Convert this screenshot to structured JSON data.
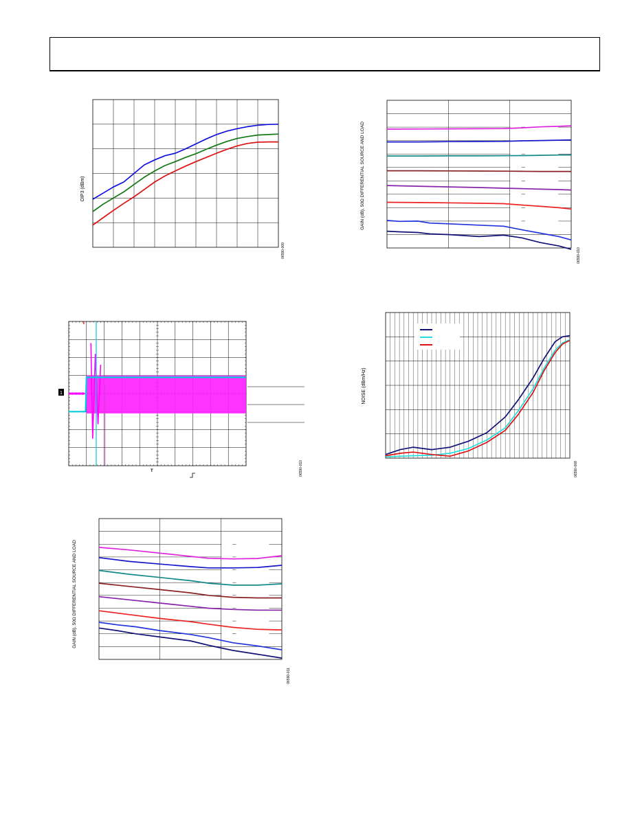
{
  "page": {
    "header_text": ""
  },
  "chart_data": [
    {
      "id": "oip3",
      "type": "line",
      "ylabel": "OIP3 (dBm)",
      "figure_code": "06590-009",
      "grid": true,
      "xlim": [
        0,
        9
      ],
      "ylim": [
        0,
        6
      ],
      "series": [
        {
          "color": "#1010dd",
          "x": [
            0,
            0.5,
            1,
            1.5,
            2,
            2.5,
            3,
            3.5,
            4,
            4.5,
            5,
            5.5,
            6,
            6.5,
            7,
            7.5,
            8,
            8.5,
            9
          ],
          "y": [
            1.95,
            2.2,
            2.45,
            2.65,
            3.0,
            3.35,
            3.55,
            3.72,
            3.82,
            4.0,
            4.2,
            4.4,
            4.58,
            4.72,
            4.82,
            4.9,
            4.96,
            4.99,
            5.0
          ]
        },
        {
          "color": "#117711",
          "x": [
            0,
            0.5,
            1,
            1.5,
            2,
            2.5,
            3,
            3.5,
            4,
            4.5,
            5,
            5.5,
            6,
            6.5,
            7,
            7.5,
            8,
            8.5,
            9
          ],
          "y": [
            1.45,
            1.75,
            2.0,
            2.25,
            2.55,
            2.85,
            3.1,
            3.32,
            3.48,
            3.65,
            3.8,
            3.98,
            4.15,
            4.3,
            4.42,
            4.5,
            4.56,
            4.58,
            4.6
          ]
        },
        {
          "color": "#dd1111",
          "x": [
            0,
            0.5,
            1,
            1.5,
            2,
            2.5,
            3,
            3.5,
            4,
            4.5,
            5,
            5.5,
            6,
            6.5,
            7,
            7.5,
            8,
            8.5,
            9
          ],
          "y": [
            0.9,
            1.2,
            1.5,
            1.78,
            2.05,
            2.35,
            2.65,
            2.9,
            3.1,
            3.3,
            3.48,
            3.65,
            3.82,
            3.98,
            4.12,
            4.22,
            4.27,
            4.28,
            4.28
          ]
        }
      ]
    },
    {
      "id": "gain_a",
      "type": "line",
      "ylabel": "GAIN (dB), 50Ω DIFFERENTIAL SOURCE AND LOAD",
      "figure_code": "06590-010",
      "grid": true,
      "xlim": [
        0,
        3
      ],
      "ylim": [
        0,
        11
      ],
      "series": [
        {
          "color": "#dd22dd",
          "x": [
            0,
            0.5,
            1,
            1.5,
            1.9,
            2.2,
            2.5,
            2.8,
            3
          ],
          "y": [
            8.85,
            8.86,
            8.87,
            8.88,
            8.89,
            8.95,
            9.02,
            9.06,
            9.1
          ]
        },
        {
          "color": "#1515cc",
          "x": [
            0,
            0.5,
            1,
            1.5,
            1.9,
            2.2,
            2.5,
            2.8,
            3
          ],
          "y": [
            7.9,
            7.9,
            7.92,
            7.93,
            7.94,
            7.98,
            8.0,
            8.03,
            8.05
          ]
        },
        {
          "color": "#118888",
          "x": [
            0,
            0.5,
            1,
            1.5,
            1.9,
            2.2,
            2.5,
            2.8,
            3
          ],
          "y": [
            6.85,
            6.85,
            6.86,
            6.86,
            6.87,
            6.88,
            6.9,
            6.92,
            6.93
          ]
        },
        {
          "color": "#882222",
          "x": [
            0,
            0.5,
            1,
            1.5,
            1.9,
            2.2,
            2.5,
            2.8,
            3
          ],
          "y": [
            5.75,
            5.75,
            5.74,
            5.73,
            5.72,
            5.71,
            5.7,
            5.7,
            5.7
          ]
        },
        {
          "color": "#8822aa",
          "x": [
            0,
            0.5,
            1,
            1.5,
            1.9,
            2.2,
            2.5,
            2.8,
            3
          ],
          "y": [
            4.65,
            4.6,
            4.55,
            4.5,
            4.45,
            4.42,
            4.38,
            4.35,
            4.32
          ]
        },
        {
          "color": "#ee2222",
          "x": [
            0,
            0.5,
            1,
            1.5,
            1.9,
            2.2,
            2.5,
            2.8,
            3
          ],
          "y": [
            3.4,
            3.38,
            3.36,
            3.33,
            3.3,
            3.2,
            3.1,
            3.0,
            2.9
          ]
        },
        {
          "color": "#2233dd",
          "x": [
            0,
            0.2,
            0.5,
            0.7,
            1,
            1.5,
            1.9,
            2.2,
            2.5,
            2.8,
            3
          ],
          "y": [
            2.05,
            1.98,
            2.0,
            1.85,
            1.8,
            1.7,
            1.62,
            1.35,
            1.1,
            0.85,
            0.6
          ]
        },
        {
          "color": "#111177",
          "x": [
            0,
            0.2,
            0.5,
            0.7,
            1,
            1.5,
            1.9,
            2.2,
            2.5,
            2.8,
            3
          ],
          "y": [
            1.25,
            1.2,
            1.15,
            1.05,
            1.0,
            0.85,
            0.95,
            0.75,
            0.4,
            0.15,
            -0.1
          ]
        }
      ]
    },
    {
      "id": "transient",
      "type": "line",
      "figure_code": "06590-010",
      "grid": true,
      "xlim": [
        0,
        10
      ],
      "ylim": [
        0,
        8
      ],
      "markers": {
        "trigger_marker": "T",
        "channel_marker": "1",
        "level_marker": "T"
      },
      "series": [
        {
          "color": "#ff00ff",
          "name": "",
          "x": [
            0,
            0.9,
            1.0,
            1.2,
            1.5,
            2.0,
            10
          ],
          "y": [
            4.0,
            4.0,
            5.4,
            2.4,
            5.2,
            5.0,
            5.0
          ]
        },
        {
          "color": "#00ccdd",
          "name": "",
          "x": [
            0,
            0.9,
            0.95,
            1.0,
            10
          ],
          "y": [
            3.0,
            3.0,
            3.0,
            4.9,
            4.9
          ]
        }
      ]
    },
    {
      "id": "noise",
      "type": "line",
      "ylabel": "NOISE (dBm/Hz)",
      "figure_code": "06590-008",
      "grid": true,
      "xlim": [
        0,
        10
      ],
      "ylim": [
        0,
        6
      ],
      "series": [
        {
          "color": "#111177",
          "name": "",
          "x": [
            0,
            0.8,
            1.5,
            2.5,
            3.5,
            4.5,
            5.5,
            6.5,
            7.2,
            8,
            8.6,
            9.2,
            9.6,
            10
          ],
          "y": [
            0.15,
            0.35,
            0.45,
            0.35,
            0.45,
            0.7,
            1.05,
            1.7,
            2.4,
            3.3,
            4.1,
            4.8,
            5.0,
            5.05
          ]
        },
        {
          "color": "#22dddd",
          "name": "",
          "x": [
            0,
            0.8,
            1.5,
            2.5,
            3.5,
            4.5,
            5.5,
            6.5,
            7.2,
            8,
            8.6,
            9.2,
            9.6,
            10
          ],
          "y": [
            0.05,
            0.08,
            0.1,
            0.12,
            0.2,
            0.4,
            0.75,
            1.25,
            1.95,
            2.85,
            3.7,
            4.45,
            4.75,
            4.88
          ]
        },
        {
          "color": "#dd1111",
          "name": "",
          "x": [
            0,
            0.8,
            1.5,
            2.5,
            3.5,
            4.5,
            5.5,
            6.5,
            7.2,
            8,
            8.6,
            9.2,
            9.6,
            10
          ],
          "y": [
            0.1,
            0.2,
            0.25,
            0.15,
            0.08,
            0.3,
            0.65,
            1.15,
            1.8,
            2.7,
            3.6,
            4.35,
            4.7,
            4.85
          ]
        }
      ]
    },
    {
      "id": "gain_b",
      "type": "line",
      "ylabel": "GAIN (dB), 50Ω DIFFERENTIAL SOURCE AND LOAD",
      "figure_code": "06590-011",
      "grid": true,
      "xlim": [
        0,
        3
      ],
      "ylim": [
        0,
        11
      ],
      "series": [
        {
          "color": "#dd22dd",
          "x": [
            0,
            0.5,
            1,
            1.5,
            1.8,
            2.2,
            2.6,
            3
          ],
          "y": [
            8.75,
            8.55,
            8.3,
            8.05,
            7.9,
            7.85,
            7.88,
            8.1
          ]
        },
        {
          "color": "#1515cc",
          "x": [
            0,
            0.5,
            1,
            1.5,
            1.8,
            2.2,
            2.6,
            3
          ],
          "y": [
            7.95,
            7.65,
            7.45,
            7.25,
            7.15,
            7.15,
            7.18,
            7.35
          ]
        },
        {
          "color": "#118888",
          "x": [
            0,
            0.5,
            1,
            1.5,
            1.8,
            2.2,
            2.6,
            3
          ],
          "y": [
            6.95,
            6.65,
            6.4,
            6.15,
            5.95,
            5.8,
            5.8,
            5.9
          ]
        },
        {
          "color": "#882222",
          "x": [
            0,
            0.5,
            1,
            1.5,
            1.8,
            2.2,
            2.6,
            3
          ],
          "y": [
            5.95,
            5.7,
            5.45,
            5.2,
            5.0,
            4.85,
            4.8,
            4.8
          ]
        },
        {
          "color": "#8822aa",
          "x": [
            0,
            0.5,
            1,
            1.5,
            1.8,
            2.2,
            2.6,
            3
          ],
          "y": [
            4.9,
            4.65,
            4.4,
            4.15,
            4.0,
            3.9,
            3.85,
            3.85
          ]
        },
        {
          "color": "#ee2222",
          "x": [
            0,
            0.5,
            1,
            1.5,
            1.8,
            2.2,
            2.6,
            3
          ],
          "y": [
            3.8,
            3.5,
            3.2,
            2.95,
            2.75,
            2.5,
            2.35,
            2.3
          ]
        },
        {
          "color": "#2233dd",
          "x": [
            0,
            0.3,
            0.6,
            1,
            1.5,
            1.8,
            2.2,
            2.6,
            3
          ],
          "y": [
            2.9,
            2.7,
            2.55,
            2.25,
            1.95,
            1.7,
            1.3,
            1.05,
            0.75
          ]
        },
        {
          "color": "#111177",
          "x": [
            0,
            0.3,
            0.6,
            1,
            1.5,
            1.8,
            2.2,
            2.6,
            3
          ],
          "y": [
            2.45,
            2.25,
            2.0,
            1.75,
            1.45,
            1.1,
            0.7,
            0.4,
            0.1
          ]
        }
      ]
    }
  ]
}
